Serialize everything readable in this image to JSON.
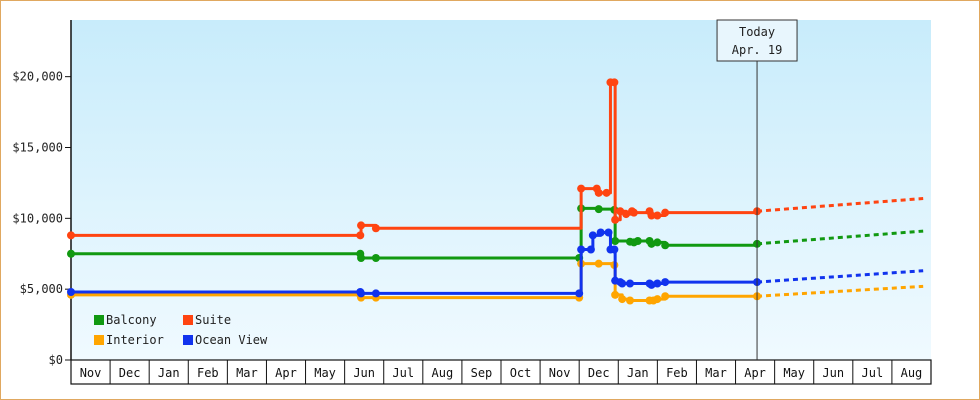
{
  "chart_data": {
    "type": "line",
    "title": "",
    "xlabel": "",
    "ylabel": "",
    "ylim": [
      0,
      24000
    ],
    "y_ticks": [
      "$0",
      "$5,000",
      "$10,000",
      "$15,000",
      "$20,000"
    ],
    "y_tick_values": [
      0,
      5000,
      10000,
      15000,
      20000
    ],
    "x_range": [
      "Nov",
      "Aug"
    ],
    "months": [
      "Nov",
      "Dec",
      "Jan",
      "Feb",
      "Mar",
      "Apr",
      "May",
      "Jun",
      "Jul",
      "Aug",
      "Sep",
      "Oct",
      "Nov",
      "Dec",
      "Jan",
      "Feb",
      "Mar",
      "Apr",
      "May",
      "Jun",
      "Jul",
      "Aug"
    ],
    "grid": false,
    "legend_position": "bottom-left",
    "today": {
      "line1": "Today",
      "line2": "Apr. 19",
      "x": 17.55
    },
    "series": [
      {
        "name": "Balcony",
        "color": "#119911",
        "points": [
          [
            0,
            7500
          ],
          [
            7.4,
            7500
          ],
          [
            7.42,
            7200
          ],
          [
            7.8,
            7200
          ],
          [
            13.0,
            7200
          ],
          [
            13.05,
            10700
          ],
          [
            13.5,
            10650
          ],
          [
            13.9,
            10600
          ],
          [
            13.92,
            8400
          ],
          [
            14.3,
            8350
          ],
          [
            14.4,
            8300
          ],
          [
            14.5,
            8400
          ],
          [
            14.8,
            8400
          ],
          [
            14.85,
            8200
          ],
          [
            15.0,
            8300
          ],
          [
            15.2,
            8100
          ],
          [
            17.55,
            8200
          ]
        ],
        "forecast": [
          [
            17.55,
            8200
          ],
          [
            21.8,
            9100
          ]
        ]
      },
      {
        "name": "Suite",
        "color": "#ff4411",
        "points": [
          [
            0,
            8800
          ],
          [
            7.4,
            8800
          ],
          [
            7.42,
            9500
          ],
          [
            7.8,
            9300
          ],
          [
            13.05,
            12100
          ],
          [
            13.45,
            12100
          ],
          [
            13.5,
            11800
          ],
          [
            13.7,
            11800
          ],
          [
            13.8,
            19600
          ],
          [
            13.9,
            19600
          ],
          [
            13.92,
            9900
          ],
          [
            14.05,
            10500
          ],
          [
            14.2,
            10300
          ],
          [
            14.35,
            10500
          ],
          [
            14.4,
            10400
          ],
          [
            14.8,
            10500
          ],
          [
            14.85,
            10200
          ],
          [
            15.0,
            10200
          ],
          [
            15.2,
            10400
          ],
          [
            17.55,
            10500
          ]
        ],
        "forecast": [
          [
            17.55,
            10500
          ],
          [
            21.8,
            11400
          ]
        ]
      },
      {
        "name": "Interior",
        "color": "#ffa500",
        "points": [
          [
            0,
            4600
          ],
          [
            7.4,
            4600
          ],
          [
            7.42,
            4400
          ],
          [
            7.8,
            4400
          ],
          [
            13.0,
            4400
          ],
          [
            13.05,
            6800
          ],
          [
            13.5,
            6800
          ],
          [
            13.9,
            6700
          ],
          [
            13.92,
            4600
          ],
          [
            14.1,
            4300
          ],
          [
            14.3,
            4200
          ],
          [
            14.8,
            4200
          ],
          [
            14.9,
            4200
          ],
          [
            15.0,
            4300
          ],
          [
            15.2,
            4500
          ],
          [
            17.55,
            4500
          ]
        ],
        "forecast": [
          [
            17.55,
            4500
          ],
          [
            21.8,
            5200
          ]
        ]
      },
      {
        "name": "Ocean View",
        "color": "#1133ee",
        "points": [
          [
            0,
            4800
          ],
          [
            7.4,
            4800
          ],
          [
            7.42,
            4700
          ],
          [
            7.8,
            4700
          ],
          [
            13.0,
            4700
          ],
          [
            13.05,
            7800
          ],
          [
            13.3,
            7800
          ],
          [
            13.35,
            8800
          ],
          [
            13.55,
            9000
          ],
          [
            13.75,
            9000
          ],
          [
            13.8,
            7800
          ],
          [
            13.9,
            7800
          ],
          [
            13.92,
            5600
          ],
          [
            14.05,
            5500
          ],
          [
            14.1,
            5400
          ],
          [
            14.3,
            5400
          ],
          [
            14.8,
            5400
          ],
          [
            14.85,
            5300
          ],
          [
            15.0,
            5400
          ],
          [
            15.2,
            5500
          ],
          [
            17.55,
            5500
          ]
        ],
        "forecast": [
          [
            17.55,
            5500
          ],
          [
            21.8,
            6300
          ]
        ]
      }
    ]
  }
}
